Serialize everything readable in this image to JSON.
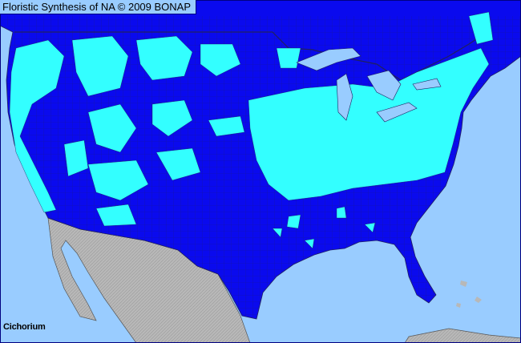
{
  "header": {
    "title": "Floristic Synthesis of NA © 2009 BONAP"
  },
  "map": {
    "taxon": "Cichorium",
    "colors": {
      "ocean": "#99ccff",
      "present_state": "#0a0aee",
      "present_county": "#33ffff",
      "outside_region": "#b8b8b8",
      "borders": "#202060"
    }
  }
}
